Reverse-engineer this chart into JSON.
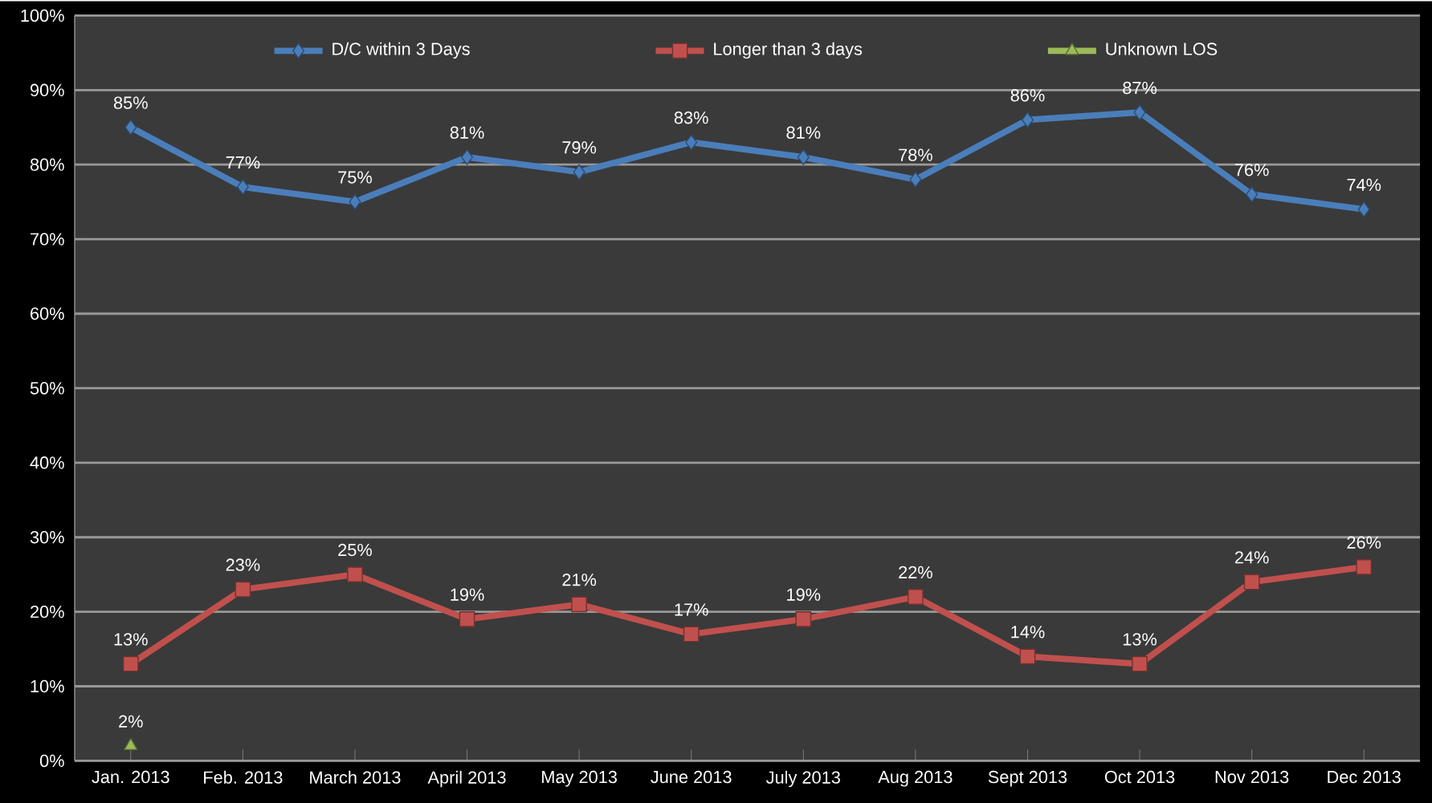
{
  "chart_data": {
    "type": "line",
    "categories": [
      "Jan. 2013",
      "Feb. 2013",
      "March 2013",
      "April 2013",
      "May 2013",
      "June 2013",
      "July 2013",
      "Aug 2013",
      "Sept 2013",
      "Oct 2013",
      "Nov 2013",
      "Dec 2013"
    ],
    "series": [
      {
        "name": "D/C within 3 Days",
        "color": "#4a7ebb",
        "marker": "diamond",
        "values": [
          85,
          77,
          75,
          81,
          79,
          83,
          81,
          78,
          86,
          87,
          76,
          74
        ],
        "value_labels": [
          "85%",
          "77%",
          "75%",
          "81%",
          "79%",
          "83%",
          "81%",
          "78%",
          "86%",
          "87%",
          "76%",
          "74%"
        ]
      },
      {
        "name": "Longer than 3 days",
        "color": "#c0504d",
        "marker": "square",
        "values": [
          13,
          23,
          25,
          19,
          21,
          17,
          19,
          22,
          14,
          13,
          24,
          26
        ],
        "value_labels": [
          "13%",
          "23%",
          "25%",
          "19%",
          "21%",
          "17%",
          "19%",
          "22%",
          "14%",
          "13%",
          "24%",
          "26%"
        ]
      },
      {
        "name": "Unknown LOS",
        "color": "#9bbb59",
        "marker": "triangle",
        "values": [
          2,
          null,
          null,
          null,
          null,
          null,
          null,
          null,
          null,
          null,
          null,
          null
        ],
        "value_labels": [
          "2%",
          null,
          null,
          null,
          null,
          null,
          null,
          null,
          null,
          null,
          null,
          null
        ]
      }
    ],
    "ylim": [
      0,
      100
    ],
    "yticks": [
      {
        "value": 0,
        "label": "0%"
      },
      {
        "value": 10,
        "label": "10%"
      },
      {
        "value": 20,
        "label": "20%"
      },
      {
        "value": 30,
        "label": "30%"
      },
      {
        "value": 40,
        "label": "40%"
      },
      {
        "value": 50,
        "label": "50%"
      },
      {
        "value": 60,
        "label": "60%"
      },
      {
        "value": 70,
        "label": "70%"
      },
      {
        "value": 80,
        "label": "80%"
      },
      {
        "value": 90,
        "label": "90%"
      },
      {
        "value": 100,
        "label": "100%"
      }
    ],
    "grid": "y",
    "legend": "top"
  }
}
